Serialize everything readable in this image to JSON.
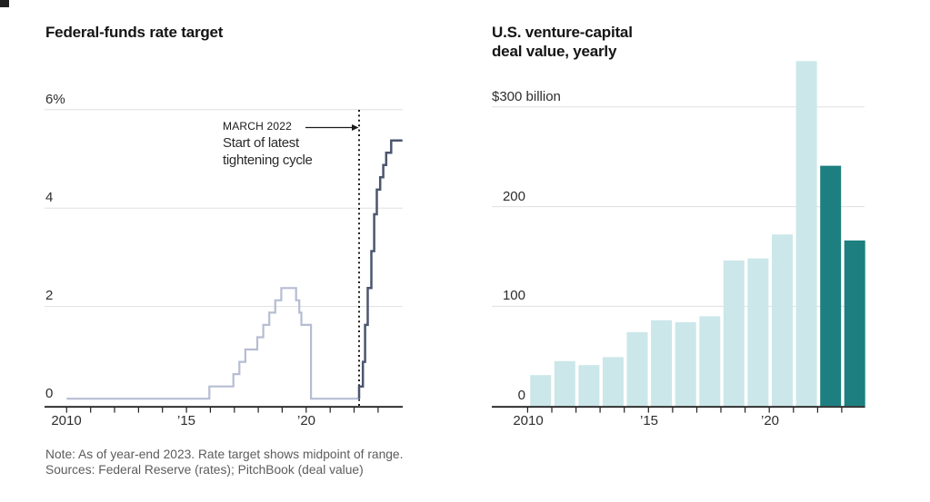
{
  "note": {
    "line1": "Note: As of year-end 2023. Rate target shows midpoint of range.",
    "line2": "Sources: Federal Reserve (rates); PitchBook (deal value)"
  },
  "chart_data": [
    {
      "type": "line",
      "title": "Federal-funds rate target",
      "ylabel": "percent",
      "ylim": [
        0,
        6
      ],
      "xlim": [
        2009,
        2024
      ],
      "grid_values": [
        6,
        4,
        2
      ],
      "y_tick_labels": [
        "6%",
        "4",
        "2",
        "0"
      ],
      "x_tick_labels": [
        "2010",
        "’15",
        "’20"
      ],
      "x_tick_years": [
        2010,
        2015,
        2020
      ],
      "annotation": {
        "label": "MARCH 2022",
        "lines": [
          "Start of latest",
          "tightening cycle"
        ],
        "x_year": 2022.21
      },
      "series": [
        {
          "name": "Rate target midpoint, 2010 to March 2022",
          "color": "#b6bdd3",
          "end_x": 2022.21,
          "step_points": [
            [
              2010,
              0.125
            ],
            [
              2015.96,
              0.375
            ],
            [
              2016.96,
              0.625
            ],
            [
              2017.21,
              0.875
            ],
            [
              2017.46,
              1.125
            ],
            [
              2017.96,
              1.375
            ],
            [
              2018.21,
              1.625
            ],
            [
              2018.46,
              1.875
            ],
            [
              2018.71,
              2.125
            ],
            [
              2018.96,
              2.375
            ],
            [
              2019.58,
              2.125
            ],
            [
              2019.71,
              1.875
            ],
            [
              2019.8,
              1.625
            ],
            [
              2020.2,
              0.125
            ]
          ]
        },
        {
          "name": "Latest tightening cycle, March 2022 to year-end 2023",
          "color": "#4b566f",
          "end_x": 2024.02,
          "step_points": [
            [
              2022.21,
              0.125
            ],
            [
              2022.21,
              0.375
            ],
            [
              2022.37,
              0.875
            ],
            [
              2022.46,
              1.625
            ],
            [
              2022.57,
              2.375
            ],
            [
              2022.72,
              3.125
            ],
            [
              2022.84,
              3.875
            ],
            [
              2022.95,
              4.375
            ],
            [
              2023.09,
              4.625
            ],
            [
              2023.22,
              4.875
            ],
            [
              2023.34,
              5.125
            ],
            [
              2023.55,
              5.375
            ]
          ]
        }
      ]
    },
    {
      "type": "bar",
      "title": "U.S. venture-capital deal value, yearly",
      "title_lines": [
        "U.S. venture-capital",
        "deal value, yearly"
      ],
      "unit": "$ billion",
      "ylim": [
        0,
        350
      ],
      "grid_values": [
        300,
        200,
        100
      ],
      "y_tick_labels": [
        "$300 billion",
        "200",
        "100",
        "0"
      ],
      "x_tick_labels": [
        "2010",
        "’15",
        "’20"
      ],
      "x_tick_years": [
        2010,
        2015,
        2020
      ],
      "categories": [
        2010,
        2011,
        2012,
        2013,
        2014,
        2015,
        2016,
        2017,
        2018,
        2019,
        2020,
        2021,
        2022,
        2023
      ],
      "values": [
        31,
        45,
        41,
        49,
        74,
        86,
        84,
        90,
        146,
        148,
        172,
        346,
        241,
        166
      ],
      "colors": {
        "default": "#cbe7e9",
        "highlight": "#1d7f80",
        "highlight_from_index": 12
      }
    }
  ]
}
